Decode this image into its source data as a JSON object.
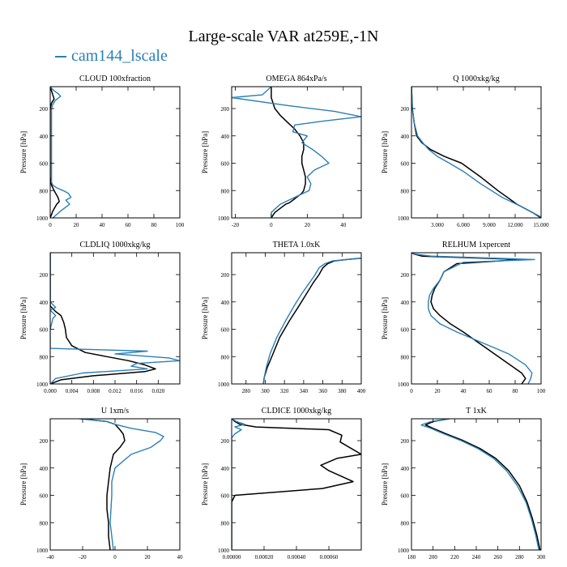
{
  "title": "Large-scale VAR at259E,-1N",
  "legend": {
    "label": "cam144_lscale",
    "color": "#2a7fb7"
  },
  "colors": {
    "model": "#000000",
    "lscale": "#2a7fb7"
  },
  "ylabel": "Pressure [hPa]",
  "chart_data": [
    {
      "type": "line",
      "title": "CLOUD  100xfraction",
      "ylabel": "Pressure [hPa]",
      "xlim": [
        0,
        100
      ],
      "ylim": [
        1000,
        40
      ],
      "y_reversed": true,
      "xticks": [
        0,
        20,
        40,
        60,
        80,
        100
      ],
      "xtick_labels": [
        "0",
        "20",
        "40",
        "60",
        "80",
        "100"
      ],
      "yticks": [
        200,
        400,
        600,
        800,
        1000
      ],
      "ytick_labels": [
        "200",
        "400",
        "600",
        "800",
        "1000"
      ],
      "series": [
        {
          "role": "model",
          "x": [
            0,
            1,
            2,
            3,
            1,
            0,
            0,
            0,
            0,
            0,
            0,
            0,
            0,
            0,
            0,
            0,
            1,
            3,
            6,
            7,
            5,
            2,
            0
          ],
          "y": [
            40,
            70,
            100,
            130,
            160,
            200,
            250,
            300,
            350,
            400,
            450,
            500,
            550,
            600,
            650,
            700,
            760,
            800,
            850,
            880,
            900,
            950,
            1000
          ]
        },
        {
          "name": "cam144_lscale",
          "x": [
            0,
            3,
            6,
            8,
            4,
            2,
            1,
            1,
            1,
            1,
            1,
            1,
            1,
            1,
            1,
            2,
            5,
            10,
            14,
            16,
            12,
            15,
            8,
            2
          ],
          "y": [
            40,
            70,
            90,
            110,
            140,
            170,
            200,
            300,
            400,
            500,
            600,
            650,
            700,
            720,
            740,
            760,
            780,
            800,
            820,
            850,
            870,
            900,
            950,
            1000
          ]
        }
      ]
    },
    {
      "type": "line",
      "title": "OMEGA  864xPa/s",
      "ylabel": "Pressure [hPa]",
      "xlim": [
        -22,
        50
      ],
      "ylim": [
        1000,
        40
      ],
      "y_reversed": true,
      "xticks": [
        -20,
        0,
        20,
        40
      ],
      "xtick_labels": [
        "-20",
        "0",
        "20",
        "40"
      ],
      "yticks": [
        200,
        400,
        600,
        800,
        1000
      ],
      "ytick_labels": [
        "200",
        "400",
        "600",
        "800",
        "1000"
      ],
      "series": [
        {
          "role": "model",
          "x": [
            0,
            0,
            0,
            1,
            2,
            5,
            9,
            13,
            16,
            18,
            18,
            17,
            17,
            18,
            19,
            19,
            18,
            17,
            15,
            13,
            12,
            11,
            10,
            8,
            5,
            2,
            0
          ],
          "y": [
            40,
            80,
            120,
            160,
            200,
            250,
            300,
            350,
            400,
            450,
            500,
            550,
            600,
            650,
            700,
            750,
            800,
            820,
            840,
            860,
            870,
            880,
            890,
            900,
            930,
            960,
            1000
          ]
        },
        {
          "role": "lscale",
          "x": [
            0,
            -5,
            -22,
            10,
            35,
            50,
            30,
            13,
            12,
            20,
            17,
            23,
            28,
            32,
            24,
            20,
            22,
            21,
            5,
            0,
            0
          ],
          "y": [
            40,
            100,
            120,
            180,
            220,
            260,
            290,
            320,
            370,
            400,
            450,
            500,
            550,
            600,
            650,
            700,
            750,
            800,
            900,
            960,
            1000
          ]
        }
      ]
    },
    {
      "type": "line",
      "title": "Q  1000xkg/kg",
      "ylabel": "Pressure [hPa]",
      "xlim": [
        0,
        15
      ],
      "ylim": [
        1000,
        40
      ],
      "y_reversed": true,
      "xticks": [
        3,
        6,
        9,
        12,
        15
      ],
      "xtick_labels": [
        "3.000",
        "6.000",
        "9.000",
        "12.000",
        "15.000"
      ],
      "yticks": [
        200,
        400,
        600,
        800,
        1000
      ],
      "ytick_labels": [
        "200",
        "400",
        "600",
        "800",
        "1000"
      ],
      "series": [
        {
          "role": "model",
          "x": [
            0,
            0.1,
            0.3,
            0.6,
            1.2,
            2.2,
            3.8,
            5.8,
            8.0,
            10.0,
            12.2,
            14.0,
            15.0
          ],
          "y": [
            40,
            200,
            300,
            400,
            450,
            500,
            550,
            600,
            700,
            800,
            900,
            960,
            1000
          ]
        },
        {
          "role": "lscale",
          "x": [
            0,
            0.1,
            0.3,
            0.7,
            1.3,
            2.0,
            3.0,
            4.4,
            6.0,
            8.0,
            10.5,
            12.8,
            14.6,
            15.2
          ],
          "y": [
            40,
            200,
            300,
            400,
            450,
            500,
            550,
            600,
            660,
            750,
            850,
            920,
            980,
            1000
          ]
        }
      ]
    },
    {
      "type": "line",
      "title": "CLDLIQ  1000xkg/kg",
      "ylabel": "Pressure [hPa]",
      "xlim": [
        0,
        0.024
      ],
      "ylim": [
        1000,
        40
      ],
      "y_reversed": true,
      "xticks": [
        0,
        0.004,
        0.008,
        0.012,
        0.016,
        0.02
      ],
      "xtick_labels": [
        "0.000",
        "0.004",
        "0.008",
        "0.012",
        "0.016",
        "0.020"
      ],
      "yticks": [
        200,
        400,
        600,
        800,
        1000
      ],
      "ytick_labels": [
        "200",
        "400",
        "600",
        "800",
        "1000"
      ],
      "series": [
        {
          "role": "model",
          "x": [
            0,
            0,
            0,
            0,
            0,
            0.0005,
            0.001,
            0.002,
            0.0025,
            0.0028,
            0.003,
            0.004,
            0.0065,
            0.0105,
            0.0145,
            0.0175,
            0.0195,
            0.0175,
            0.008,
            0.002,
            0
          ],
          "y": [
            40,
            200,
            300,
            400,
            430,
            450,
            470,
            500,
            550,
            600,
            660,
            720,
            770,
            800,
            830,
            860,
            890,
            910,
            940,
            970,
            1000
          ]
        },
        {
          "role": "lscale",
          "x": [
            0,
            0,
            0,
            0.001,
            0,
            0.001,
            0.0005,
            0,
            0,
            0.018,
            0.012,
            0.022,
            0.024,
            0.016,
            0.015,
            0.018,
            0.006,
            0.001,
            0
          ],
          "y": [
            40,
            200,
            400,
            440,
            460,
            500,
            520,
            600,
            740,
            760,
            780,
            810,
            830,
            850,
            870,
            890,
            920,
            960,
            1000
          ]
        }
      ]
    },
    {
      "type": "line",
      "title": "THETA  1.0xK",
      "ylabel": "Pressure [hPa]",
      "xlim": [
        265,
        400
      ],
      "ylim": [
        1000,
        40
      ],
      "y_reversed": true,
      "xticks": [
        280,
        300,
        320,
        340,
        360,
        380,
        400
      ],
      "xtick_labels": [
        "280",
        "300",
        "320",
        "340",
        "360",
        "380",
        "400"
      ],
      "yticks": [
        200,
        400,
        600,
        800,
        1000
      ],
      "ytick_labels": [
        "200",
        "400",
        "600",
        "800",
        "1000"
      ],
      "series": [
        {
          "role": "model",
          "x": [
            400,
            385,
            372,
            365,
            360,
            356,
            350,
            343,
            335,
            325,
            315,
            308,
            302,
            299,
            298
          ],
          "y": [
            80,
            90,
            100,
            120,
            150,
            200,
            260,
            340,
            430,
            540,
            660,
            780,
            880,
            950,
            1000
          ]
        },
        {
          "role": "lscale",
          "x": [
            400,
            385,
            370,
            362,
            356,
            352,
            346,
            338,
            330,
            321,
            312,
            305,
            301,
            299,
            298
          ],
          "y": [
            80,
            90,
            100,
            120,
            150,
            200,
            260,
            340,
            430,
            540,
            660,
            780,
            880,
            950,
            1000
          ]
        }
      ]
    },
    {
      "type": "line",
      "title": "RELHUM  1xpercent",
      "ylabel": "Pressure [hPa]",
      "xlim": [
        0,
        100
      ],
      "ylim": [
        1000,
        40
      ],
      "y_reversed": true,
      "xticks": [
        0,
        20,
        40,
        60,
        80,
        100
      ],
      "xtick_labels": [
        "0",
        "20",
        "40",
        "60",
        "80",
        "100"
      ],
      "yticks": [
        200,
        400,
        600,
        800,
        1000
      ],
      "ytick_labels": [
        "200",
        "400",
        "600",
        "800",
        "1000"
      ],
      "series": [
        {
          "role": "model",
          "x": [
            0,
            2,
            8,
            85,
            35,
            25,
            22,
            18,
            16,
            15,
            17,
            22,
            30,
            40,
            52,
            64,
            76,
            85,
            88,
            85
          ],
          "y": [
            40,
            50,
            65,
            90,
            120,
            180,
            240,
            300,
            350,
            400,
            450,
            500,
            560,
            620,
            700,
            780,
            860,
            920,
            960,
            1000
          ]
        },
        {
          "role": "lscale",
          "x": [
            0,
            3,
            15,
            95,
            40,
            25,
            22,
            17,
            14,
            13,
            13,
            15,
            22,
            35,
            55,
            75,
            88,
            93,
            92,
            90
          ],
          "y": [
            40,
            50,
            65,
            90,
            110,
            180,
            240,
            300,
            350,
            400,
            450,
            500,
            560,
            620,
            700,
            780,
            860,
            920,
            960,
            1000
          ]
        }
      ]
    },
    {
      "type": "line",
      "title": "U  1xm/s",
      "ylabel": "Pressure [hPa]",
      "xlim": [
        -40,
        40
      ],
      "ylim": [
        1000,
        40
      ],
      "y_reversed": true,
      "xticks": [
        -40,
        -20,
        0,
        20,
        40
      ],
      "xtick_labels": [
        "-40",
        "-20",
        "0",
        "20",
        "40"
      ],
      "yticks": [
        200,
        400,
        600,
        800,
        1000
      ],
      "ytick_labels": [
        "200",
        "400",
        "600",
        "800",
        "1000"
      ],
      "series": [
        {
          "role": "model",
          "x": [
            -20,
            -5,
            0,
            3,
            5,
            6,
            3,
            -1,
            -3,
            -4,
            -5,
            -5,
            -4,
            -4,
            -3
          ],
          "y": [
            40,
            60,
            80,
            120,
            150,
            200,
            250,
            300,
            400,
            500,
            600,
            700,
            800,
            900,
            1000
          ]
        },
        {
          "role": "lscale",
          "x": [
            -22,
            -5,
            0,
            10,
            25,
            30,
            28,
            22,
            10,
            0,
            -2,
            -2,
            -3,
            -2,
            -1
          ],
          "y": [
            40,
            60,
            80,
            110,
            140,
            170,
            200,
            250,
            300,
            400,
            500,
            600,
            800,
            900,
            1000
          ]
        }
      ]
    },
    {
      "type": "line",
      "title": "CLDICE  1000xkg/kg",
      "ylabel": "Pressure [hPa]",
      "xlim": [
        0,
        0.0008
      ],
      "ylim": [
        1000,
        40
      ],
      "y_reversed": true,
      "xticks": [
        0,
        0.0002,
        0.0004,
        0.0006
      ],
      "xtick_labels": [
        "0.00000",
        "0.00020",
        "0.00040",
        "0.00060"
      ],
      "yticks": [
        200,
        400,
        600,
        800,
        1000
      ],
      "ytick_labels": [
        "200",
        "400",
        "600",
        "800",
        "1000"
      ],
      "series": [
        {
          "role": "model",
          "x": [
            0,
            2e-05,
            5e-05,
            0.00015,
            0.0006,
            0.00068,
            0.00067,
            0.0008,
            0.00065,
            0.00055,
            0.0006,
            0.00075,
            0.00056,
            2e-05,
            0,
            0
          ],
          "y": [
            40,
            60,
            80,
            100,
            120,
            160,
            210,
            300,
            330,
            380,
            420,
            500,
            550,
            600,
            650,
            1000
          ]
        },
        {
          "role": "lscale",
          "x": [
            0,
            3e-05,
            8e-05,
            2e-05,
            6e-05,
            2e-05,
            0,
            0
          ],
          "y": [
            40,
            60,
            80,
            100,
            120,
            150,
            180,
            1000
          ]
        }
      ]
    },
    {
      "type": "line",
      "title": "T  1xK",
      "ylabel": "Pressure [hPa]",
      "xlim": [
        180,
        300
      ],
      "ylim": [
        1000,
        40
      ],
      "y_reversed": true,
      "xticks": [
        180,
        200,
        220,
        240,
        260,
        280,
        300
      ],
      "xtick_labels": [
        "180",
        "200",
        "220",
        "240",
        "260",
        "280",
        "300"
      ],
      "yticks": [
        200,
        400,
        600,
        800,
        1000
      ],
      "ytick_labels": [
        "200",
        "400",
        "600",
        "800",
        "1000"
      ],
      "series": [
        {
          "role": "model",
          "x": [
            215,
            200,
            193,
            200,
            212,
            228,
            244,
            258,
            270,
            280,
            287,
            292,
            296,
            299
          ],
          "y": [
            40,
            60,
            85,
            110,
            150,
            200,
            260,
            330,
            420,
            530,
            650,
            770,
            890,
            1000
          ]
        },
        {
          "role": "lscale",
          "x": [
            215,
            198,
            189,
            198,
            210,
            226,
            242,
            256,
            268,
            278,
            286,
            291,
            295,
            298
          ],
          "y": [
            40,
            60,
            85,
            110,
            150,
            200,
            260,
            330,
            420,
            530,
            650,
            770,
            890,
            1000
          ]
        }
      ]
    }
  ]
}
